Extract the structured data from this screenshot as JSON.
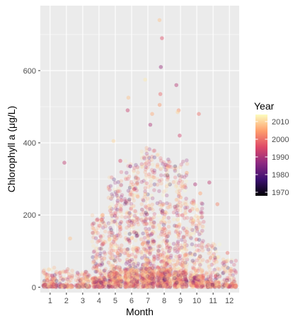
{
  "chart_data": {
    "type": "scatter",
    "title": "",
    "xlabel": "Month",
    "ylabel": "Chlorophyll a (μg/L)",
    "x_categories": [
      "1",
      "2",
      "3",
      "4",
      "5",
      "6",
      "7",
      "8",
      "9",
      "10",
      "11",
      "12"
    ],
    "ylim": [
      -15,
      780
    ],
    "y_ticks": [
      0,
      200,
      400,
      600
    ],
    "y_tick_labels": [
      "0",
      "200",
      "400",
      "600"
    ],
    "point_alpha": 0.25,
    "month_profiles": [
      {
        "month": 1,
        "n": 90,
        "median": 8,
        "spread": 14,
        "max": 62
      },
      {
        "month": 2,
        "n": 60,
        "median": 6,
        "spread": 10,
        "max": 60
      },
      {
        "month": 3,
        "n": 75,
        "median": 6,
        "spread": 10,
        "max": 48
      },
      {
        "month": 4,
        "n": 170,
        "median": 28,
        "spread": 45,
        "max": 230
      },
      {
        "month": 5,
        "n": 260,
        "median": 45,
        "spread": 70,
        "max": 360
      },
      {
        "month": 6,
        "n": 300,
        "median": 55,
        "spread": 80,
        "max": 390
      },
      {
        "month": 7,
        "n": 330,
        "median": 62,
        "spread": 90,
        "max": 440
      },
      {
        "month": 8,
        "n": 330,
        "median": 60,
        "spread": 85,
        "max": 420
      },
      {
        "month": 9,
        "n": 260,
        "median": 45,
        "spread": 70,
        "max": 400
      },
      {
        "month": 10,
        "n": 190,
        "median": 30,
        "spread": 55,
        "max": 280
      },
      {
        "month": 11,
        "n": 110,
        "median": 14,
        "spread": 25,
        "max": 140
      },
      {
        "month": 12,
        "n": 80,
        "median": 10,
        "spread": 16,
        "max": 95
      }
    ],
    "outliers": [
      {
        "month": 2,
        "y": 345,
        "year": 1992
      },
      {
        "month": 2,
        "y": 135,
        "year": 2008
      },
      {
        "month": 4,
        "y": 200,
        "year": 2005
      },
      {
        "month": 5,
        "y": 405,
        "year": 2010
      },
      {
        "month": 5,
        "y": 350,
        "year": 1995
      },
      {
        "month": 6,
        "y": 490,
        "year": 1993
      },
      {
        "month": 6,
        "y": 525,
        "year": 2008
      },
      {
        "month": 6,
        "y": 335,
        "year": 1985
      },
      {
        "month": 7,
        "y": 575,
        "year": 2012
      },
      {
        "month": 7,
        "y": 450,
        "year": 1990
      },
      {
        "month": 7,
        "y": 480,
        "year": 2006
      },
      {
        "month": 8,
        "y": 740,
        "year": 2008
      },
      {
        "month": 8,
        "y": 690,
        "year": 1996
      },
      {
        "month": 8,
        "y": 610,
        "year": 1988
      },
      {
        "month": 8,
        "y": 535,
        "year": 1999
      },
      {
        "month": 8,
        "y": 505,
        "year": 2004
      },
      {
        "month": 9,
        "y": 560,
        "year": 1991
      },
      {
        "month": 9,
        "y": 490,
        "year": 2003
      },
      {
        "month": 9,
        "y": 420,
        "year": 1994
      },
      {
        "month": 9,
        "y": 485,
        "year": 2010
      },
      {
        "month": 10,
        "y": 480,
        "year": 2000
      },
      {
        "month": 10,
        "y": 285,
        "year": 1990
      },
      {
        "month": 10,
        "y": 260,
        "year": 2005
      },
      {
        "month": 11,
        "y": 290,
        "year": 1992
      },
      {
        "month": 11,
        "y": 230,
        "year": 2002
      },
      {
        "month": 12,
        "y": 95,
        "year": 2000
      }
    ],
    "color_scale": {
      "name": "magma",
      "title": "Year",
      "domain": [
        1968,
        2014
      ],
      "ticks": [
        1970,
        1980,
        1990,
        2000,
        2010
      ],
      "tick_labels": [
        "1970",
        "1980",
        "1990",
        "2000",
        "2010"
      ],
      "stops": [
        "#000004",
        "#3b0f70",
        "#8c2981",
        "#de4968",
        "#fe9f6d",
        "#fcfdbf"
      ]
    },
    "legend": {
      "title": "Year",
      "position": "right"
    },
    "panel_background": "#ebebeb",
    "grid": true,
    "grid_color": "#ffffff"
  }
}
